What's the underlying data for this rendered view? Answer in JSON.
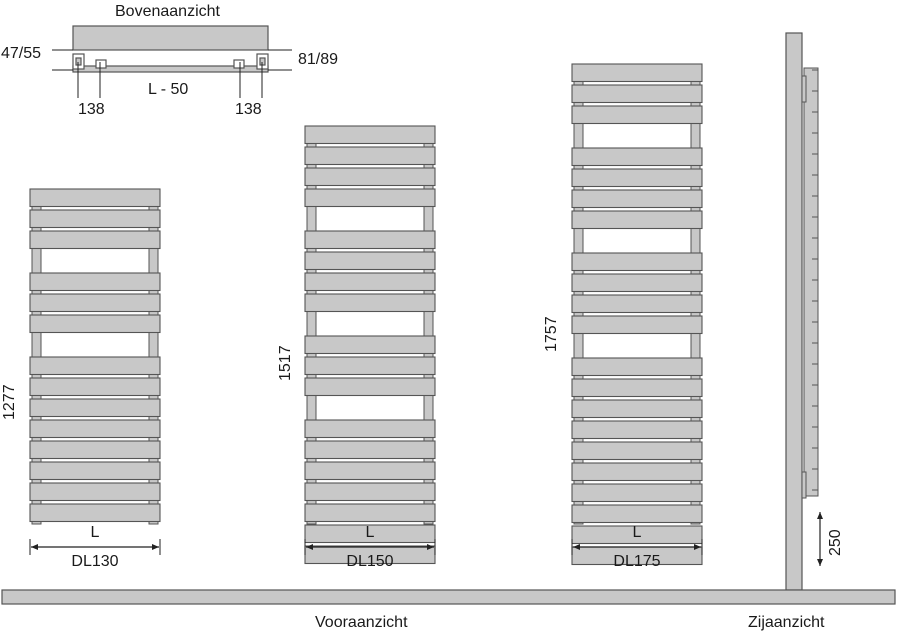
{
  "top_view": {
    "title": "Bovenaanzicht",
    "left_depth": "47/55",
    "right_depth": "81/89",
    "width_label": "L - 50",
    "left_offset": "138",
    "right_offset": "138"
  },
  "radiators": [
    {
      "height": "1277",
      "width_symbol": "L",
      "model": "DL130"
    },
    {
      "height": "1517",
      "width_symbol": "L",
      "model": "DL150"
    },
    {
      "height": "1757",
      "width_symbol": "L",
      "model": "DL175"
    }
  ],
  "side_view": {
    "floor_clearance": "250"
  },
  "captions": {
    "front": "Vooraanzicht",
    "side": "Zijaanzicht"
  },
  "colors": {
    "panel_fill": "#c8c8c8",
    "panel_stroke": "#555555",
    "line": "#222222"
  }
}
